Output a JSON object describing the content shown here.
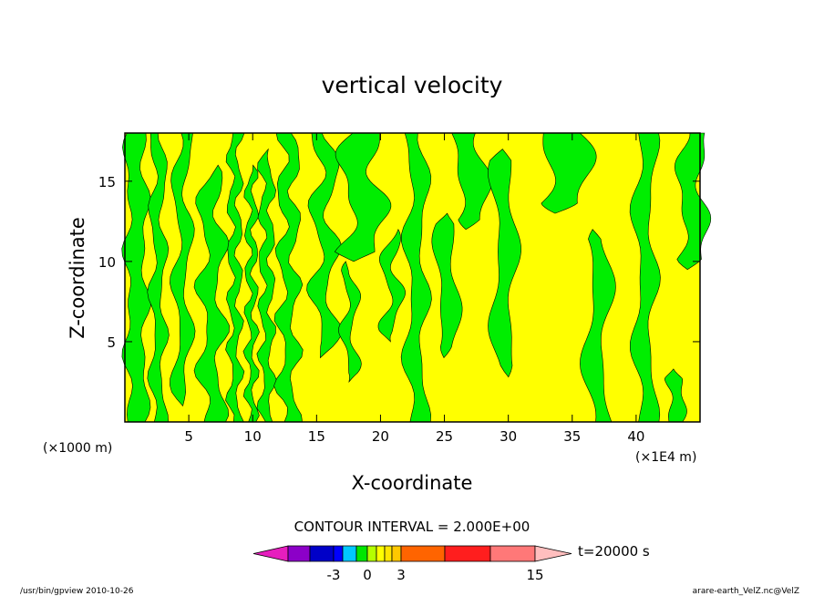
{
  "chart_data": {
    "type": "heatmap",
    "title": "vertical velocity",
    "xlabel": "X-coordinate",
    "ylabel": "Z-coordinate",
    "x_unit_left": "(×1000 m)",
    "x_unit_right": "(×1E4 m)",
    "xlim": [
      0,
      45
    ],
    "ylim": [
      0,
      18
    ],
    "x_ticks": [
      5,
      10,
      15,
      20,
      25,
      30,
      35,
      40
    ],
    "y_ticks": [
      5,
      10,
      15
    ],
    "fill_colors": {
      "positive": "#ffff00",
      "negative": "#00ee00"
    },
    "contour_interval_text": "CONTOUR INTERVAL = 2.000E+00",
    "time_label": "t=20000 s",
    "colorbar": {
      "colors": [
        "#e61ebe",
        "#8c00c8",
        "#0000c8",
        "#0000ff",
        "#00c8ff",
        "#00e600",
        "#b4ff00",
        "#ffff00",
        "#ffe600",
        "#ffc800",
        "#ff6400",
        "#ff1e1e",
        "#ff7878",
        "#ffbebe"
      ],
      "tick_labels": [
        "-3",
        "0",
        "3",
        "15"
      ],
      "tick_values": [
        -3,
        0,
        3,
        15
      ]
    },
    "footer_left": "/usr/bin/gpview   2010-10-26",
    "footer_right": "arare-earth_VelZ.nc@VelZ"
  }
}
